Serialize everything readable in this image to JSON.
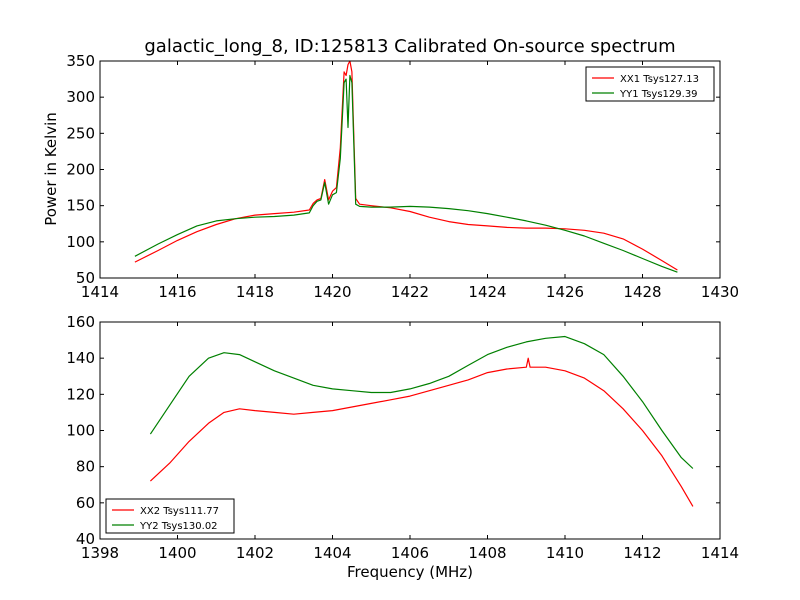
{
  "chart_data": [
    {
      "type": "line",
      "title": "galactic_long_8, ID:125813 Calibrated On-source spectrum",
      "xlabel": "",
      "ylabel": "Power in Kelvin",
      "xlim": [
        1414,
        1430
      ],
      "ylim": [
        50,
        350
      ],
      "xticks": [
        "1414",
        "1416",
        "1418",
        "1420",
        "1422",
        "1424",
        "1426",
        "1428",
        "1430"
      ],
      "yticks": [
        "50",
        "100",
        "150",
        "200",
        "250",
        "300",
        "350"
      ],
      "legend_position": "top-right",
      "series": [
        {
          "name": "XX1 Tsys127.13",
          "color": "#ff0000",
          "points": [
            [
              1414.9,
              72
            ],
            [
              1415.5,
              88
            ],
            [
              1416,
              102
            ],
            [
              1416.5,
              114
            ],
            [
              1417,
              124
            ],
            [
              1417.5,
              132
            ],
            [
              1418,
              137
            ],
            [
              1418.5,
              139
            ],
            [
              1419,
              141
            ],
            [
              1419.4,
              144
            ],
            [
              1419.5,
              153
            ],
            [
              1419.6,
              158
            ],
            [
              1419.7,
              160
            ],
            [
              1419.8,
              186
            ],
            [
              1419.9,
              158
            ],
            [
              1420.0,
              170
            ],
            [
              1420.1,
              175
            ],
            [
              1420.2,
              230
            ],
            [
              1420.3,
              335
            ],
            [
              1420.35,
              330
            ],
            [
              1420.4,
              345
            ],
            [
              1420.45,
              350
            ],
            [
              1420.5,
              335
            ],
            [
              1420.6,
              160
            ],
            [
              1420.7,
              152
            ],
            [
              1421,
              150
            ],
            [
              1421.5,
              147
            ],
            [
              1422,
              142
            ],
            [
              1422.5,
              134
            ],
            [
              1423,
              128
            ],
            [
              1423.5,
              124
            ],
            [
              1424,
              122
            ],
            [
              1424.5,
              120
            ],
            [
              1425,
              119
            ],
            [
              1425.5,
              119
            ],
            [
              1426,
              118
            ],
            [
              1426.5,
              116
            ],
            [
              1427,
              112
            ],
            [
              1427.5,
              104
            ],
            [
              1428,
              90
            ],
            [
              1428.5,
              74
            ],
            [
              1428.9,
              61
            ]
          ]
        },
        {
          "name": "YY1 Tsys129.39",
          "color": "#008000",
          "points": [
            [
              1414.9,
              80
            ],
            [
              1415.5,
              97
            ],
            [
              1416,
              110
            ],
            [
              1416.5,
              122
            ],
            [
              1417,
              129
            ],
            [
              1417.5,
              132
            ],
            [
              1418,
              134
            ],
            [
              1418.5,
              135
            ],
            [
              1419,
              137
            ],
            [
              1419.4,
              140
            ],
            [
              1419.5,
              150
            ],
            [
              1419.6,
              156
            ],
            [
              1419.7,
              158
            ],
            [
              1419.8,
              182
            ],
            [
              1419.9,
              152
            ],
            [
              1420.0,
              165
            ],
            [
              1420.1,
              168
            ],
            [
              1420.2,
              215
            ],
            [
              1420.3,
              320
            ],
            [
              1420.35,
              325
            ],
            [
              1420.4,
              258
            ],
            [
              1420.45,
              330
            ],
            [
              1420.5,
              320
            ],
            [
              1420.6,
              152
            ],
            [
              1420.7,
              149
            ],
            [
              1421,
              148
            ],
            [
              1421.5,
              148
            ],
            [
              1422,
              149
            ],
            [
              1422.5,
              148
            ],
            [
              1423,
              146
            ],
            [
              1423.5,
              143
            ],
            [
              1424,
              139
            ],
            [
              1424.5,
              134
            ],
            [
              1425,
              129
            ],
            [
              1425.5,
              123
            ],
            [
              1426,
              116
            ],
            [
              1426.5,
              108
            ],
            [
              1427,
              98
            ],
            [
              1427.5,
              88
            ],
            [
              1428,
              77
            ],
            [
              1428.5,
              66
            ],
            [
              1428.9,
              58
            ]
          ]
        }
      ]
    },
    {
      "type": "line",
      "title": "",
      "xlabel": "Frequency (MHz)",
      "ylabel": "",
      "xlim": [
        1398,
        1414
      ],
      "ylim": [
        40,
        160
      ],
      "xticks": [
        "1398",
        "1400",
        "1402",
        "1404",
        "1406",
        "1408",
        "1410",
        "1412",
        "1414"
      ],
      "yticks": [
        "40",
        "60",
        "80",
        "100",
        "120",
        "140",
        "160"
      ],
      "legend_position": "bottom-left",
      "series": [
        {
          "name": "XX2 Tsys111.77",
          "color": "#ff0000",
          "points": [
            [
              1399.3,
              72
            ],
            [
              1399.8,
              82
            ],
            [
              1400.3,
              94
            ],
            [
              1400.8,
              104
            ],
            [
              1401.2,
              110
            ],
            [
              1401.6,
              112
            ],
            [
              1402,
              111
            ],
            [
              1402.5,
              110
            ],
            [
              1403,
              109
            ],
            [
              1403.5,
              110
            ],
            [
              1404,
              111
            ],
            [
              1404.5,
              113
            ],
            [
              1405,
              115
            ],
            [
              1405.5,
              117
            ],
            [
              1406,
              119
            ],
            [
              1406.5,
              122
            ],
            [
              1407,
              125
            ],
            [
              1407.5,
              128
            ],
            [
              1408,
              132
            ],
            [
              1408.5,
              134
            ],
            [
              1409,
              135
            ],
            [
              1409.05,
              140
            ],
            [
              1409.1,
              135
            ],
            [
              1409.5,
              135
            ],
            [
              1410,
              133
            ],
            [
              1410.5,
              129
            ],
            [
              1411,
              122
            ],
            [
              1411.5,
              112
            ],
            [
              1412,
              100
            ],
            [
              1412.5,
              86
            ],
            [
              1413,
              69
            ],
            [
              1413.3,
              58
            ]
          ]
        },
        {
          "name": "YY2 Tsys130.02",
          "color": "#008000",
          "points": [
            [
              1399.3,
              98
            ],
            [
              1399.8,
              114
            ],
            [
              1400.3,
              130
            ],
            [
              1400.8,
              140
            ],
            [
              1401.2,
              143
            ],
            [
              1401.6,
              142
            ],
            [
              1402,
              138
            ],
            [
              1402.5,
              133
            ],
            [
              1403,
              129
            ],
            [
              1403.5,
              125
            ],
            [
              1404,
              123
            ],
            [
              1404.5,
              122
            ],
            [
              1405,
              121
            ],
            [
              1405.5,
              121
            ],
            [
              1406,
              123
            ],
            [
              1406.5,
              126
            ],
            [
              1407,
              130
            ],
            [
              1407.5,
              136
            ],
            [
              1408,
              142
            ],
            [
              1408.5,
              146
            ],
            [
              1409,
              149
            ],
            [
              1409.5,
              151
            ],
            [
              1410,
              152
            ],
            [
              1410.5,
              148
            ],
            [
              1411,
              142
            ],
            [
              1411.5,
              130
            ],
            [
              1412,
              116
            ],
            [
              1412.5,
              100
            ],
            [
              1413,
              85
            ],
            [
              1413.3,
              79
            ]
          ]
        }
      ]
    }
  ]
}
